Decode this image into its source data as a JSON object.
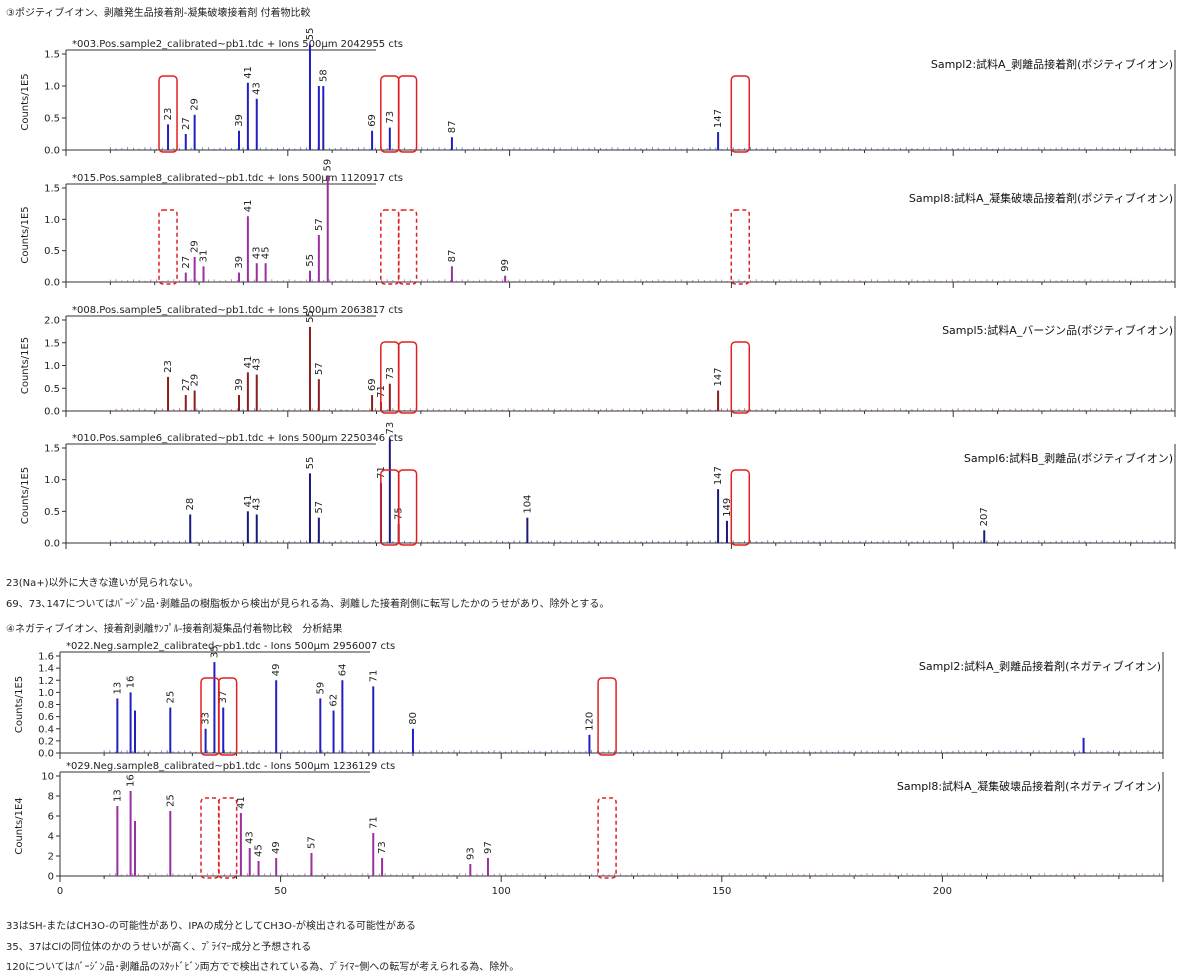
{
  "section3_heading": "③ポジティブイオン、剥離発生品接着剤-凝集破壊接着剤 付着物比較",
  "section4_heading": "④ネガティブイオン、接着剤剥離ｻﾝﾌﾟﾙ-接着剤凝集品付着物比較　分析結果",
  "note1": "23(Na+)以外に大きな違いが見られない。",
  "note2": "69、73､147についてはﾊﾞｰｼﾞﾝ品･剥離品の樹脂板から検出が見られる為、剥離した接着剤側に転写したかのうせがあり、除外とする。",
  "note3": "33はSH-またはCH3O-の可能性があり、IPAの成分としてCH3O-が検出される可能性がある",
  "note4": "35、37はClの同位体のかのうせいが高く、ﾌﾟﾗｲﾏｰ成分と予想される",
  "note5": "120についてはﾊﾞｰｼﾞﾝ品･剥離品のｽﾀｯﾄﾞﾋﾞﾝ両方でで検出されている為、ﾌﾟﾗｲﾏｰ側への転写が考えられる為、除外。",
  "chart_data": [
    {
      "type": "bar",
      "title": "*003.Pos.sample2_calibrated~pb1.tdc + Ions 500µm 2042955 cts",
      "legend": "Sampl2:試料A_剥離品接着剤(ポジティブイオン)",
      "ylabel": "Counts/1E5",
      "ylim": [
        0,
        1.5
      ],
      "yticks": [
        "0.0",
        "0.5",
        "1.0",
        "1.5"
      ],
      "color": "#2020c0",
      "peaks": [
        [
          23,
          0.4
        ],
        [
          27,
          0.25
        ],
        [
          29,
          0.55
        ],
        [
          39,
          0.3
        ],
        [
          41,
          1.05
        ],
        [
          43,
          0.8
        ],
        [
          55,
          1.65
        ],
        [
          57,
          1.0
        ],
        [
          58,
          1.0
        ],
        [
          69,
          0.3
        ],
        [
          73,
          0.35
        ],
        [
          87,
          0.2
        ],
        [
          147,
          0.28
        ]
      ],
      "labels": [
        23,
        27,
        29,
        39,
        41,
        43,
        55,
        58,
        69,
        73,
        87,
        147
      ],
      "boxes": [
        23,
        73,
        77,
        152
      ],
      "dashed": false
    },
    {
      "type": "bar",
      "title": "*015.Pos.sample8_calibrated~pb1.tdc + Ions 500µm 1120917 cts",
      "legend": "Sampl8:試料A_凝集破壊品接着剤(ポジティブイオン)",
      "ylabel": "Counts/1E5",
      "ylim": [
        0,
        1.5
      ],
      "yticks": [
        "0.0",
        "0.5",
        "1.0",
        "1.5"
      ],
      "color": "#9a2fa0",
      "peaks": [
        [
          27,
          0.15
        ],
        [
          29,
          0.4
        ],
        [
          31,
          0.25
        ],
        [
          39,
          0.15
        ],
        [
          41,
          1.05
        ],
        [
          43,
          0.3
        ],
        [
          45,
          0.3
        ],
        [
          55,
          0.18
        ],
        [
          57,
          0.75
        ],
        [
          59,
          1.7
        ],
        [
          87,
          0.25
        ],
        [
          99,
          0.1
        ]
      ],
      "labels": [
        27,
        29,
        31,
        39,
        41,
        43,
        45,
        55,
        57,
        59,
        87,
        99
      ],
      "boxes": [
        23,
        73,
        77,
        152
      ],
      "dashed": true
    },
    {
      "type": "bar",
      "title": "*008.Pos.sample5_calibrated~pb1.tdc + Ions 500µm 2063817 cts",
      "legend": "Sampl5:試料A_バージン品(ポジティブイオン)",
      "ylabel": "Counts/1E5",
      "ylim": [
        0,
        2.0
      ],
      "yticks": [
        "0.0",
        "0.5",
        "1.0",
        "1.5",
        "2.0"
      ],
      "color": "#8a1d1d",
      "peaks": [
        [
          23,
          0.75
        ],
        [
          27,
          0.35
        ],
        [
          29,
          0.45
        ],
        [
          39,
          0.35
        ],
        [
          41,
          0.85
        ],
        [
          43,
          0.8
        ],
        [
          55,
          1.85
        ],
        [
          57,
          0.7
        ],
        [
          69,
          0.35
        ],
        [
          71,
          0.2
        ],
        [
          73,
          0.6
        ],
        [
          147,
          0.45
        ]
      ],
      "labels": [
        23,
        27,
        29,
        39,
        41,
        43,
        55,
        57,
        69,
        71,
        73,
        147
      ],
      "boxes": [
        73,
        77,
        152
      ],
      "dashed": false
    },
    {
      "type": "bar",
      "title": "*010.Pos.sample6_calibrated~pb1.tdc + Ions 500µm 2250346 cts",
      "legend": "Sampl6:試料B_剥離品(ポジティブイオン)",
      "ylabel": "Counts/1E5",
      "ylim": [
        0,
        1.5
      ],
      "yticks": [
        "0.0",
        "0.5",
        "1.0",
        "1.5"
      ],
      "color": "#1a1a7a",
      "peaks": [
        [
          28,
          0.45
        ],
        [
          41,
          0.5
        ],
        [
          43,
          0.45
        ],
        [
          55,
          1.1
        ],
        [
          57,
          0.4
        ],
        [
          71,
          0.95
        ],
        [
          73,
          1.65
        ],
        [
          75,
          0.3
        ],
        [
          104,
          0.4
        ],
        [
          147,
          0.85
        ],
        [
          149,
          0.35
        ],
        [
          207,
          0.2
        ]
      ],
      "labels": [
        28,
        41,
        43,
        55,
        57,
        71,
        73,
        75,
        104,
        147,
        149,
        207
      ],
      "boxes": [
        73,
        77,
        152
      ],
      "dashed": false
    },
    {
      "type": "bar",
      "title": "*022.Neg.sample2_calibrated~pb1.tdc - Ions 500µm 2956007 cts",
      "legend": "Sampl2:試料A_剥離品接着剤(ネガティブイオン)",
      "ylabel": "Counts/1E5",
      "ylim": [
        0,
        1.6
      ],
      "yticks": [
        "0.0",
        "0.2",
        "0.4",
        "0.6",
        "0.8",
        "1.0",
        "1.2",
        "1.4",
        "1.6"
      ],
      "color": "#2020c0",
      "peaks": [
        [
          13,
          0.9
        ],
        [
          16,
          1.0
        ],
        [
          17,
          0.7
        ],
        [
          25,
          0.75
        ],
        [
          33,
          0.4
        ],
        [
          35,
          1.5
        ],
        [
          37,
          0.75
        ],
        [
          49,
          1.2
        ],
        [
          59,
          0.9
        ],
        [
          62,
          0.7
        ],
        [
          64,
          1.2
        ],
        [
          71,
          1.1
        ],
        [
          80,
          0.4
        ],
        [
          120,
          0.3
        ],
        [
          232,
          0.25
        ]
      ],
      "labels": [
        13,
        16,
        25,
        33,
        35,
        37,
        49,
        59,
        62,
        64,
        71,
        80,
        120
      ],
      "boxes": [
        34,
        38,
        124
      ],
      "dashed": false
    },
    {
      "type": "bar",
      "title": "*029.Neg.sample8_calibrated~pb1.tdc - Ions 500µm 1236129 cts",
      "legend": "Sampl8:試料A_凝集破壊品接着剤(ネガティブイオン)",
      "ylabel": "Counts/1E4",
      "ylim": [
        0,
        10
      ],
      "yticks": [
        "0",
        "2",
        "4",
        "6",
        "8",
        "10"
      ],
      "xticks": [
        0,
        50,
        100,
        150,
        200
      ],
      "color": "#9a2fa0",
      "peaks": [
        [
          13,
          7
        ],
        [
          16,
          8.5
        ],
        [
          17,
          5.5
        ],
        [
          25,
          6.5
        ],
        [
          41,
          6.3
        ],
        [
          43,
          2.8
        ],
        [
          45,
          1.5
        ],
        [
          49,
          1.8
        ],
        [
          57,
          2.3
        ],
        [
          71,
          4.3
        ],
        [
          73,
          1.8
        ],
        [
          93,
          1.2
        ],
        [
          97,
          1.8
        ]
      ],
      "labels": [
        13,
        16,
        25,
        41,
        43,
        45,
        49,
        57,
        71,
        73,
        93,
        97
      ],
      "boxes": [
        34,
        38,
        124
      ],
      "dashed": true
    }
  ]
}
